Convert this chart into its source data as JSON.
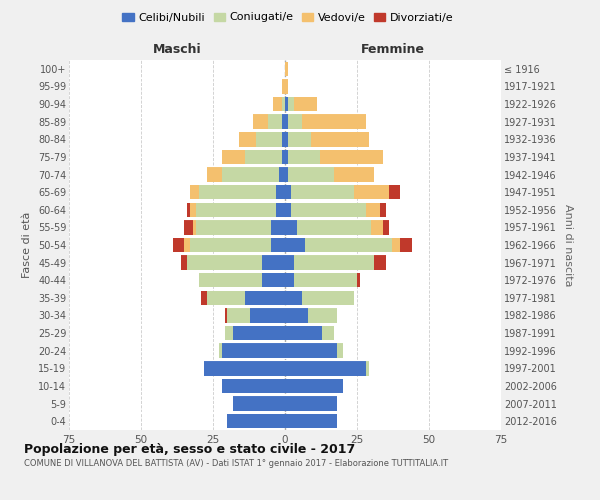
{
  "age_groups": [
    "0-4",
    "5-9",
    "10-14",
    "15-19",
    "20-24",
    "25-29",
    "30-34",
    "35-39",
    "40-44",
    "45-49",
    "50-54",
    "55-59",
    "60-64",
    "65-69",
    "70-74",
    "75-79",
    "80-84",
    "85-89",
    "90-94",
    "95-99",
    "100+"
  ],
  "birth_years": [
    "2012-2016",
    "2007-2011",
    "2002-2006",
    "1997-2001",
    "1992-1996",
    "1987-1991",
    "1982-1986",
    "1977-1981",
    "1972-1976",
    "1967-1971",
    "1962-1966",
    "1957-1961",
    "1952-1956",
    "1947-1951",
    "1942-1946",
    "1937-1941",
    "1932-1936",
    "1927-1931",
    "1922-1926",
    "1917-1921",
    "≤ 1916"
  ],
  "maschi": {
    "celibi": [
      20,
      18,
      22,
      28,
      22,
      18,
      12,
      14,
      8,
      8,
      5,
      5,
      3,
      3,
      2,
      1,
      1,
      1,
      0,
      0,
      0
    ],
    "coniugati": [
      0,
      0,
      0,
      0,
      1,
      3,
      8,
      13,
      22,
      26,
      28,
      26,
      28,
      27,
      20,
      13,
      9,
      5,
      1,
      0,
      0
    ],
    "vedovi": [
      0,
      0,
      0,
      0,
      0,
      0,
      0,
      0,
      0,
      0,
      2,
      1,
      2,
      3,
      5,
      8,
      6,
      5,
      3,
      1,
      0
    ],
    "divorziati": [
      0,
      0,
      0,
      0,
      0,
      0,
      1,
      2,
      0,
      2,
      4,
      3,
      1,
      0,
      0,
      0,
      0,
      0,
      0,
      0,
      0
    ]
  },
  "femmine": {
    "nubili": [
      18,
      18,
      20,
      28,
      18,
      13,
      8,
      6,
      3,
      3,
      7,
      4,
      2,
      2,
      1,
      1,
      1,
      1,
      1,
      0,
      0
    ],
    "coniugate": [
      0,
      0,
      0,
      1,
      2,
      4,
      10,
      18,
      22,
      28,
      30,
      26,
      26,
      22,
      16,
      11,
      8,
      5,
      2,
      0,
      0
    ],
    "vedove": [
      0,
      0,
      0,
      0,
      0,
      0,
      0,
      0,
      0,
      0,
      3,
      4,
      5,
      12,
      14,
      22,
      20,
      22,
      8,
      1,
      1
    ],
    "divorziate": [
      0,
      0,
      0,
      0,
      0,
      0,
      0,
      0,
      1,
      4,
      4,
      2,
      2,
      4,
      0,
      0,
      0,
      0,
      0,
      0,
      0
    ]
  },
  "colors": {
    "celibi": "#4472c4",
    "coniugati": "#c5d8a4",
    "vedovi": "#f4c06e",
    "divorziati": "#c0392b"
  },
  "xlim": 75,
  "title": "Popolazione per età, sesso e stato civile - 2017",
  "subtitle": "COMUNE DI VILLANOVA DEL BATTISTA (AV) - Dati ISTAT 1° gennaio 2017 - Elaborazione TUTTITALIA.IT",
  "ylabel": "Fasce di età",
  "ylabel_right": "Anni di nascita",
  "xlabel_maschi": "Maschi",
  "xlabel_femmine": "Femmine",
  "legend_labels": [
    "Celibi/Nubili",
    "Coniugati/e",
    "Vedovi/e",
    "Divorziati/e"
  ],
  "bg_color": "#f0f0f0",
  "plot_bg": "#ffffff"
}
